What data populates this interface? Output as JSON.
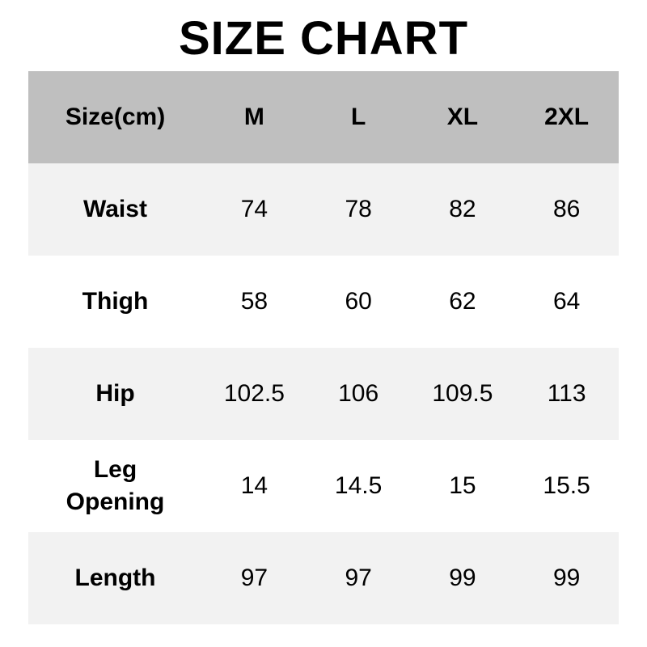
{
  "title": "SIZE CHART",
  "colors": {
    "header_bg": "#bfbfbf",
    "row_alt_bg": "#f2f2f2",
    "row_bg": "#ffffff"
  },
  "chart_data": {
    "type": "table",
    "columns": [
      "Size(cm)",
      "M",
      "L",
      "XL",
      "2XL"
    ],
    "rows": [
      {
        "label": "Waist",
        "values": [
          "74",
          "78",
          "82",
          "86"
        ]
      },
      {
        "label": "Thigh",
        "values": [
          "58",
          "60",
          "62",
          "64"
        ]
      },
      {
        "label": "Hip",
        "values": [
          "102.5",
          "106",
          "109.5",
          "113"
        ]
      },
      {
        "label": "Leg Opening",
        "values": [
          "14",
          "14.5",
          "15",
          "15.5"
        ]
      },
      {
        "label": "Length",
        "values": [
          "97",
          "97",
          "99",
          "99"
        ]
      }
    ]
  }
}
